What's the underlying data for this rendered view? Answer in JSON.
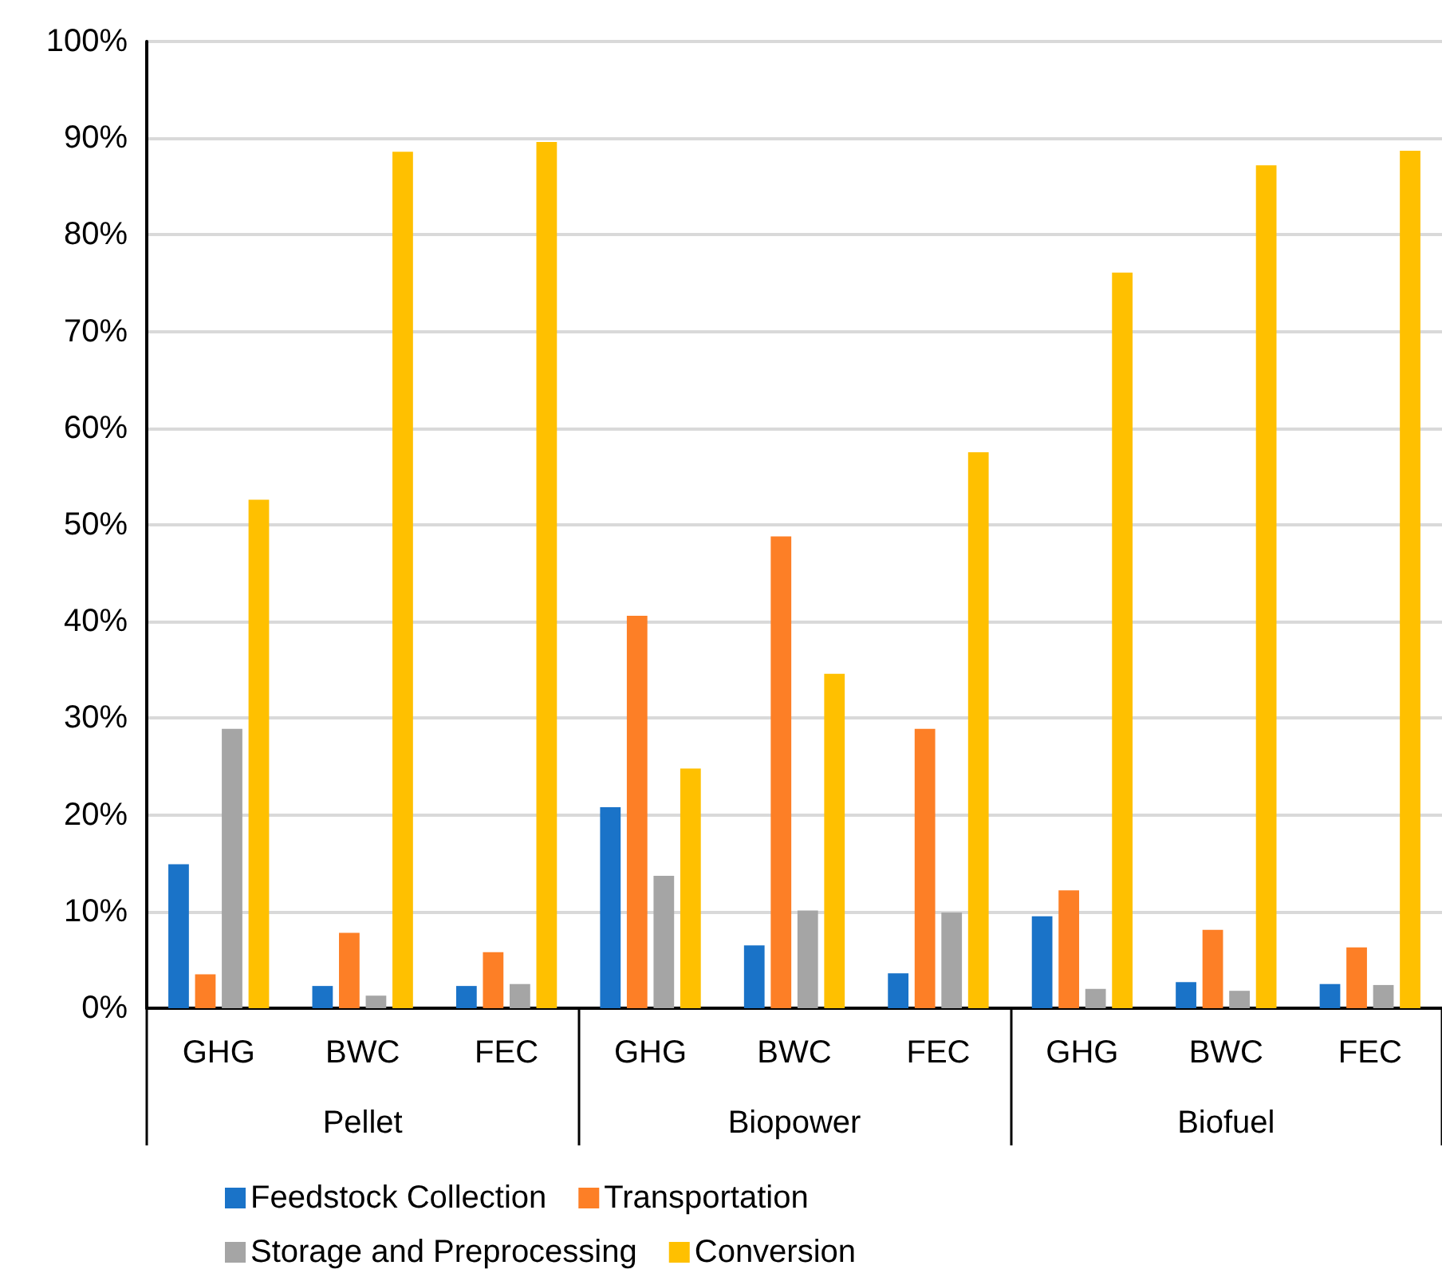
{
  "chart_data": {
    "type": "bar",
    "categories": [
      "GHG",
      "BWC",
      "FEC",
      "GHG",
      "BWC",
      "FEC",
      "GHG",
      "BWC",
      "FEC"
    ],
    "annotations": [
      "Pellet",
      "Biopower",
      "Biofuel"
    ],
    "series": [
      {
        "name": "Feedstock Collection",
        "color": "#1a73c8",
        "values": [
          14.9,
          2.3,
          2.3,
          20.8,
          6.5,
          3.6,
          9.5,
          2.7,
          2.5
        ]
      },
      {
        "name": "Transportation",
        "color": "#fd7f26",
        "values": [
          3.5,
          7.8,
          5.8,
          40.6,
          48.8,
          28.9,
          12.2,
          8.1,
          6.3
        ]
      },
      {
        "name": "Storage and Preprocessing",
        "color": "#a5a5a5",
        "values": [
          28.9,
          1.3,
          2.5,
          13.7,
          10.1,
          9.9,
          2.0,
          1.8,
          2.4
        ]
      },
      {
        "name": "Conversion",
        "color": "#ffc000",
        "values": [
          52.6,
          88.6,
          89.6,
          24.8,
          34.6,
          57.5,
          76.1,
          87.2,
          88.7
        ]
      }
    ],
    "ylim": [
      0,
      100
    ],
    "yticks": [
      {
        "value": 0,
        "label": "0%"
      },
      {
        "value": 10,
        "label": "10%"
      },
      {
        "value": 20,
        "label": "20%"
      },
      {
        "value": 30,
        "label": "30%"
      },
      {
        "value": 40,
        "label": "40%"
      },
      {
        "value": 50,
        "label": "50%"
      },
      {
        "value": 60,
        "label": "60%"
      },
      {
        "value": 70,
        "label": "70%"
      },
      {
        "value": 80,
        "label": "80%"
      },
      {
        "value": 90,
        "label": "90%"
      },
      {
        "value": 100,
        "label": "100%"
      }
    ],
    "grid": "y",
    "legend": "bottom"
  }
}
